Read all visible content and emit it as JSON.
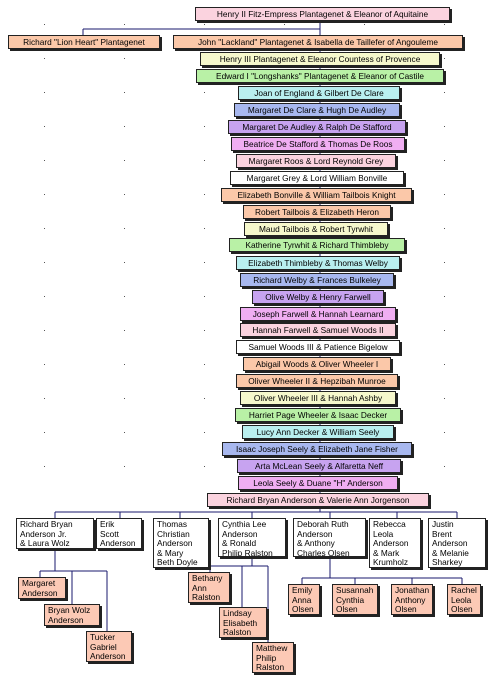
{
  "colors": {
    "salmon": "#fbc8a9",
    "pink": "#fbd3df",
    "pale_yellow": "#f6f8cc",
    "green": "#b9f1a6",
    "cyan": "#b9efef",
    "blue": "#a8b8ef",
    "purple": "#c7a3f0",
    "magenta": "#f0aef2",
    "white": "#ffffff",
    "line": "#1a1a6e"
  },
  "tree": {
    "root": "Henry II Fitz-Empress Plantagenet & Eleanor of Aquitaine",
    "generation_2": [
      "Richard \"Lion Heart\" Plantagenet",
      "John \"Lackland\" Plantagenet & Isabella de Taillefer of Angouleme"
    ],
    "lineage": [
      "Henry III Plantagenet & Eleanor Countess of Provence",
      "Edward I \"Longshanks\" Plantagenet & Eleanor of Castile",
      "Joan of England & Gilbert De Clare",
      "Margaret De Clare & Hugh De Audley",
      "Margaret De Audley & Ralph De Stafford",
      "Beatrice De Stafford & Thomas De Roos",
      "Margaret Roos & Lord Reynold Grey",
      "Margaret Grey & Lord William Bonville",
      "Elizabeth Bonville & William Tailbois Knight",
      "Robert Tailbois & Elizabeth Heron",
      "Maud Tailbois & Robert Tyrwhit",
      "Katherine Tyrwhit & Richard Thimbleby",
      "Elizabeth Thimbleby & Thomas Welby",
      "Richard Welby & Frances Bulkeley",
      "Olive Welby & Henry Farwell",
      "Joseph Farwell & Hannah Learnard",
      "Hannah Farwell & Samuel Woods II",
      "Samuel Woods III & Patience Bigelow",
      "Abigail Woods & Oliver Wheeler I",
      "Oliver Wheeler II & Hepzibah Munroe",
      "Oliver Wheeler III & Hannah Ashby",
      "Harriet Page Wheeler & Isaac Decker",
      "Lucy Ann Decker & William Seely",
      "Isaac Joseph Seely & Elizabeth Jane Fisher",
      "Arta McLean Seely & Alfaretta Neff",
      "Leola Seely & Duane \"H\" Anderson",
      "Richard Bryan Anderson & Valerie Ann Jorgenson"
    ],
    "children": [
      "Richard Bryan\nAnderson Jr.\n& Laura Wolz",
      "Erik\nScott\nAnderson",
      "Thomas\nChristian\nAnderson\n& Mary\nBeth Doyle",
      "Cynthia Lee\nAnderson\n& Ronald\nPhilip Ralston",
      "Deborah Ruth\nAnderson\n& Anthony\nCharles Olsen",
      "Rebecca\nLeola\nAnderson\n& Mark\nKrumholz",
      "Justin\nBrent\nAnderson\n& Melanie\nSharkey"
    ],
    "grandchildren": [
      "Margaret\nAnderson",
      "Bryan Wolz\nAnderson",
      "Tucker\nGabriel\nAnderson",
      "Bethany\nAnn\nRalston",
      "Lindsay\nElisabeth\nRalston",
      "Matthew\nPhilip\nRalston",
      "Emily\nAnna\nOlsen",
      "Susannah\nCynthia\nOlsen",
      "Jonathan\nAnthony\nOlsen",
      "Rachel\nLeola\nOlsen"
    ]
  }
}
